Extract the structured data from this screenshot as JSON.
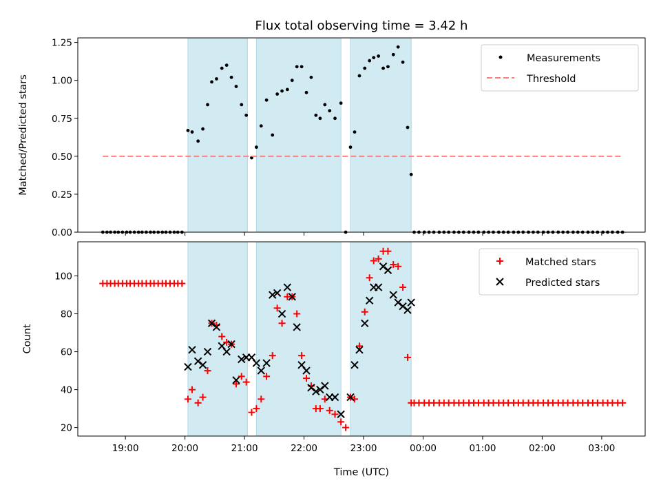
{
  "chart_data": {
    "type": "scatter",
    "title": "Flux total observing time = 3.42 h",
    "xlabel": "Time (UTC)",
    "x_tick_labels": [
      "19:00",
      "20:00",
      "21:00",
      "22:00",
      "23:00",
      "00:00",
      "01:00",
      "02:00",
      "03:00"
    ],
    "x_tick_hours": [
      19,
      20,
      21,
      22,
      23,
      24,
      25,
      26,
      27
    ],
    "xlim_hours": [
      18.2,
      27.73
    ],
    "shaded_intervals_hours": [
      [
        20.05,
        21.05
      ],
      [
        21.2,
        22.62
      ],
      [
        22.78,
        23.8
      ]
    ],
    "shade_color": "#add8e6",
    "panels": [
      {
        "ylabel": "Matched/Predicted stars",
        "ylim": [
          0,
          1.28
        ],
        "yticks": [
          0.0,
          0.25,
          0.5,
          0.75,
          1.0,
          1.25
        ],
        "ytick_labels": [
          "0.00",
          "0.25",
          "0.50",
          "0.75",
          "1.00",
          "1.25"
        ],
        "legend_position": "upper right",
        "series": [
          {
            "name": "Measurements",
            "marker": "dot",
            "color": "#000000",
            "x": [
              18.62,
              18.69,
              18.75,
              18.82,
              18.88,
              18.95,
              19.02,
              19.08,
              19.15,
              19.22,
              19.28,
              19.35,
              19.42,
              19.48,
              19.55,
              19.62,
              19.68,
              19.75,
              19.82,
              19.88,
              19.95,
              20.05,
              20.12,
              20.22,
              20.3,
              20.38,
              20.45,
              20.53,
              20.62,
              20.7,
              20.78,
              20.86,
              20.95,
              21.03,
              21.12,
              21.2,
              21.28,
              21.37,
              21.47,
              21.55,
              21.63,
              21.72,
              21.8,
              21.88,
              21.96,
              22.04,
              22.12,
              22.2,
              22.27,
              22.35,
              22.43,
              22.52,
              22.62,
              22.7,
              22.78,
              22.85,
              22.93,
              23.02,
              23.1,
              23.17,
              23.25,
              23.33,
              23.41,
              23.5,
              23.58,
              23.66,
              23.74,
              23.8,
              23.85,
              23.93,
              24.02,
              24.1,
              24.18,
              24.27,
              24.35,
              24.43,
              24.52,
              24.6,
              24.68,
              24.77,
              24.85,
              24.93,
              25.02,
              25.1,
              25.18,
              25.27,
              25.35,
              25.43,
              25.52,
              25.6,
              25.68,
              25.77,
              25.85,
              25.93,
              26.02,
              26.1,
              26.18,
              26.27,
              26.35,
              26.43,
              26.52,
              26.6,
              26.68,
              26.77,
              26.85,
              26.93,
              27.02,
              27.1,
              27.18,
              27.27,
              27.35
            ],
            "y": [
              0,
              0,
              0,
              0,
              0,
              0,
              0,
              0,
              0,
              0,
              0,
              0,
              0,
              0,
              0,
              0,
              0,
              0,
              0,
              0,
              0,
              0.67,
              0.66,
              0.6,
              0.68,
              0.84,
              0.99,
              1.01,
              1.08,
              1.1,
              1.02,
              0.96,
              0.84,
              0.77,
              0.49,
              0.56,
              0.7,
              0.87,
              0.64,
              0.91,
              0.93,
              0.94,
              1.0,
              1.09,
              1.09,
              0.92,
              1.02,
              0.77,
              0.75,
              0.84,
              0.8,
              0.75,
              0.85,
              0,
              0.56,
              0.66,
              1.03,
              1.08,
              1.13,
              1.15,
              1.16,
              1.08,
              1.09,
              1.17,
              1.22,
              1.12,
              0.69,
              0.38,
              0,
              0,
              0,
              0,
              0,
              0,
              0,
              0,
              0,
              0,
              0,
              0,
              0,
              0,
              0,
              0,
              0,
              0,
              0,
              0,
              0,
              0,
              0,
              0,
              0,
              0,
              0,
              0,
              0,
              0,
              0,
              0,
              0,
              0,
              0,
              0,
              0,
              0,
              0,
              0,
              0,
              0,
              0
            ]
          },
          {
            "name": "Threshold",
            "marker": "dashed-line",
            "color": "#ff7f7f",
            "x": [
              18.62,
              27.35
            ],
            "y": [
              0.5,
              0.5
            ]
          }
        ]
      },
      {
        "ylabel": "Count",
        "ylim": [
          15.5,
          118
        ],
        "yticks": [
          20,
          40,
          60,
          80,
          100
        ],
        "ytick_labels": [
          "20",
          "40",
          "60",
          "80",
          "100"
        ],
        "legend_position": "upper right",
        "series": [
          {
            "name": "Matched stars",
            "marker": "plus",
            "color": "#ff0000",
            "x": [
              18.62,
              18.69,
              18.75,
              18.82,
              18.88,
              18.95,
              19.02,
              19.08,
              19.15,
              19.22,
              19.28,
              19.35,
              19.42,
              19.48,
              19.55,
              19.62,
              19.68,
              19.75,
              19.82,
              19.88,
              19.95,
              20.05,
              20.12,
              20.22,
              20.3,
              20.38,
              20.45,
              20.53,
              20.62,
              20.7,
              20.78,
              20.86,
              20.95,
              21.03,
              21.12,
              21.2,
              21.28,
              21.37,
              21.47,
              21.55,
              21.63,
              21.72,
              21.8,
              21.88,
              21.96,
              22.04,
              22.12,
              22.2,
              22.27,
              22.35,
              22.43,
              22.52,
              22.62,
              22.7,
              22.78,
              22.85,
              22.93,
              23.02,
              23.1,
              23.17,
              23.25,
              23.33,
              23.41,
              23.5,
              23.58,
              23.66,
              23.74,
              23.8,
              23.85,
              23.93,
              24.02,
              24.1,
              24.18,
              24.27,
              24.35,
              24.43,
              24.52,
              24.6,
              24.68,
              24.77,
              24.85,
              24.93,
              25.02,
              25.1,
              25.18,
              25.27,
              25.35,
              25.43,
              25.52,
              25.6,
              25.68,
              25.77,
              25.85,
              25.93,
              26.02,
              26.1,
              26.18,
              26.27,
              26.35,
              26.43,
              26.52,
              26.6,
              26.68,
              26.77,
              26.85,
              26.93,
              27.02,
              27.1,
              27.18,
              27.27,
              27.35
            ],
            "y": [
              96,
              96,
              96,
              96,
              96,
              96,
              96,
              96,
              96,
              96,
              96,
              96,
              96,
              96,
              96,
              96,
              96,
              96,
              96,
              96,
              96,
              35,
              40,
              33,
              36,
              50,
              75,
              74,
              68,
              65,
              64,
              43,
              47,
              44,
              28,
              30,
              35,
              47,
              58,
              83,
              75,
              89,
              89,
              80,
              58,
              46,
              42,
              30,
              30,
              35,
              29,
              27,
              23,
              20,
              36,
              35,
              63,
              81,
              99,
              108,
              109,
              113,
              113,
              106,
              105,
              94,
              57,
              33,
              33,
              33,
              33,
              33,
              33,
              33,
              33,
              33,
              33,
              33,
              33,
              33,
              33,
              33,
              33,
              33,
              33,
              33,
              33,
              33,
              33,
              33,
              33,
              33,
              33,
              33,
              33,
              33,
              33,
              33,
              33,
              33,
              33,
              33,
              33,
              33,
              33,
              33,
              33,
              33,
              33,
              33,
              33
            ]
          },
          {
            "name": "Predicted stars",
            "marker": "x",
            "color": "#000000",
            "x": [
              20.05,
              20.12,
              20.22,
              20.3,
              20.38,
              20.45,
              20.53,
              20.62,
              20.7,
              20.78,
              20.86,
              20.95,
              21.03,
              21.12,
              21.2,
              21.28,
              21.37,
              21.47,
              21.55,
              21.63,
              21.72,
              21.8,
              21.88,
              21.96,
              22.04,
              22.12,
              22.2,
              22.27,
              22.35,
              22.43,
              22.52,
              22.62,
              22.78,
              22.85,
              22.93,
              23.02,
              23.1,
              23.17,
              23.25,
              23.33,
              23.41,
              23.5,
              23.58,
              23.66,
              23.74,
              23.8
            ],
            "y": [
              52,
              61,
              55,
              53,
              60,
              75,
              73,
              63,
              60,
              64,
              45,
              56,
              57,
              57,
              54,
              50,
              54,
              90,
              91,
              80,
              94,
              89,
              73,
              53,
              50,
              41,
              39,
              40,
              42,
              36,
              36,
              27,
              36,
              53,
              61,
              75,
              87,
              94,
              94,
              105,
              103,
              90,
              86,
              84,
              82,
              86
            ]
          }
        ]
      }
    ]
  }
}
